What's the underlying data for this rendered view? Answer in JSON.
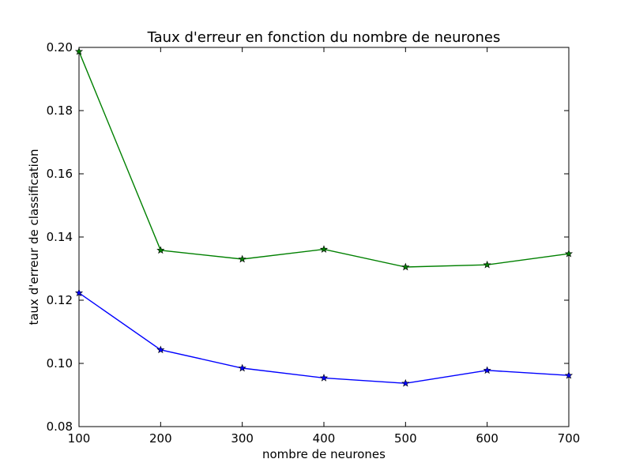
{
  "chart_data": {
    "type": "line",
    "title": "Taux d'erreur en fonction du nombre de neurones",
    "xlabel": "nombre de neurones",
    "ylabel": "taux d'erreur de classification",
    "xlim": [
      100,
      700
    ],
    "ylim": [
      0.08,
      0.2
    ],
    "xticks": [
      "100",
      "200",
      "300",
      "400",
      "500",
      "600",
      "700"
    ],
    "yticks": [
      "0.08",
      "0.10",
      "0.12",
      "0.14",
      "0.16",
      "0.18",
      "0.20"
    ],
    "grid": false,
    "marker": "star",
    "x": [
      100,
      200,
      300,
      400,
      500,
      600,
      700
    ],
    "series": [
      {
        "color": "#0000ff",
        "values": [
          0.1223,
          0.1043,
          0.0985,
          0.0954,
          0.0937,
          0.0978,
          0.0962
        ]
      },
      {
        "color": "#008000",
        "values": [
          0.1987,
          0.1358,
          0.133,
          0.1361,
          0.1305,
          0.1312,
          0.1347
        ]
      }
    ]
  }
}
